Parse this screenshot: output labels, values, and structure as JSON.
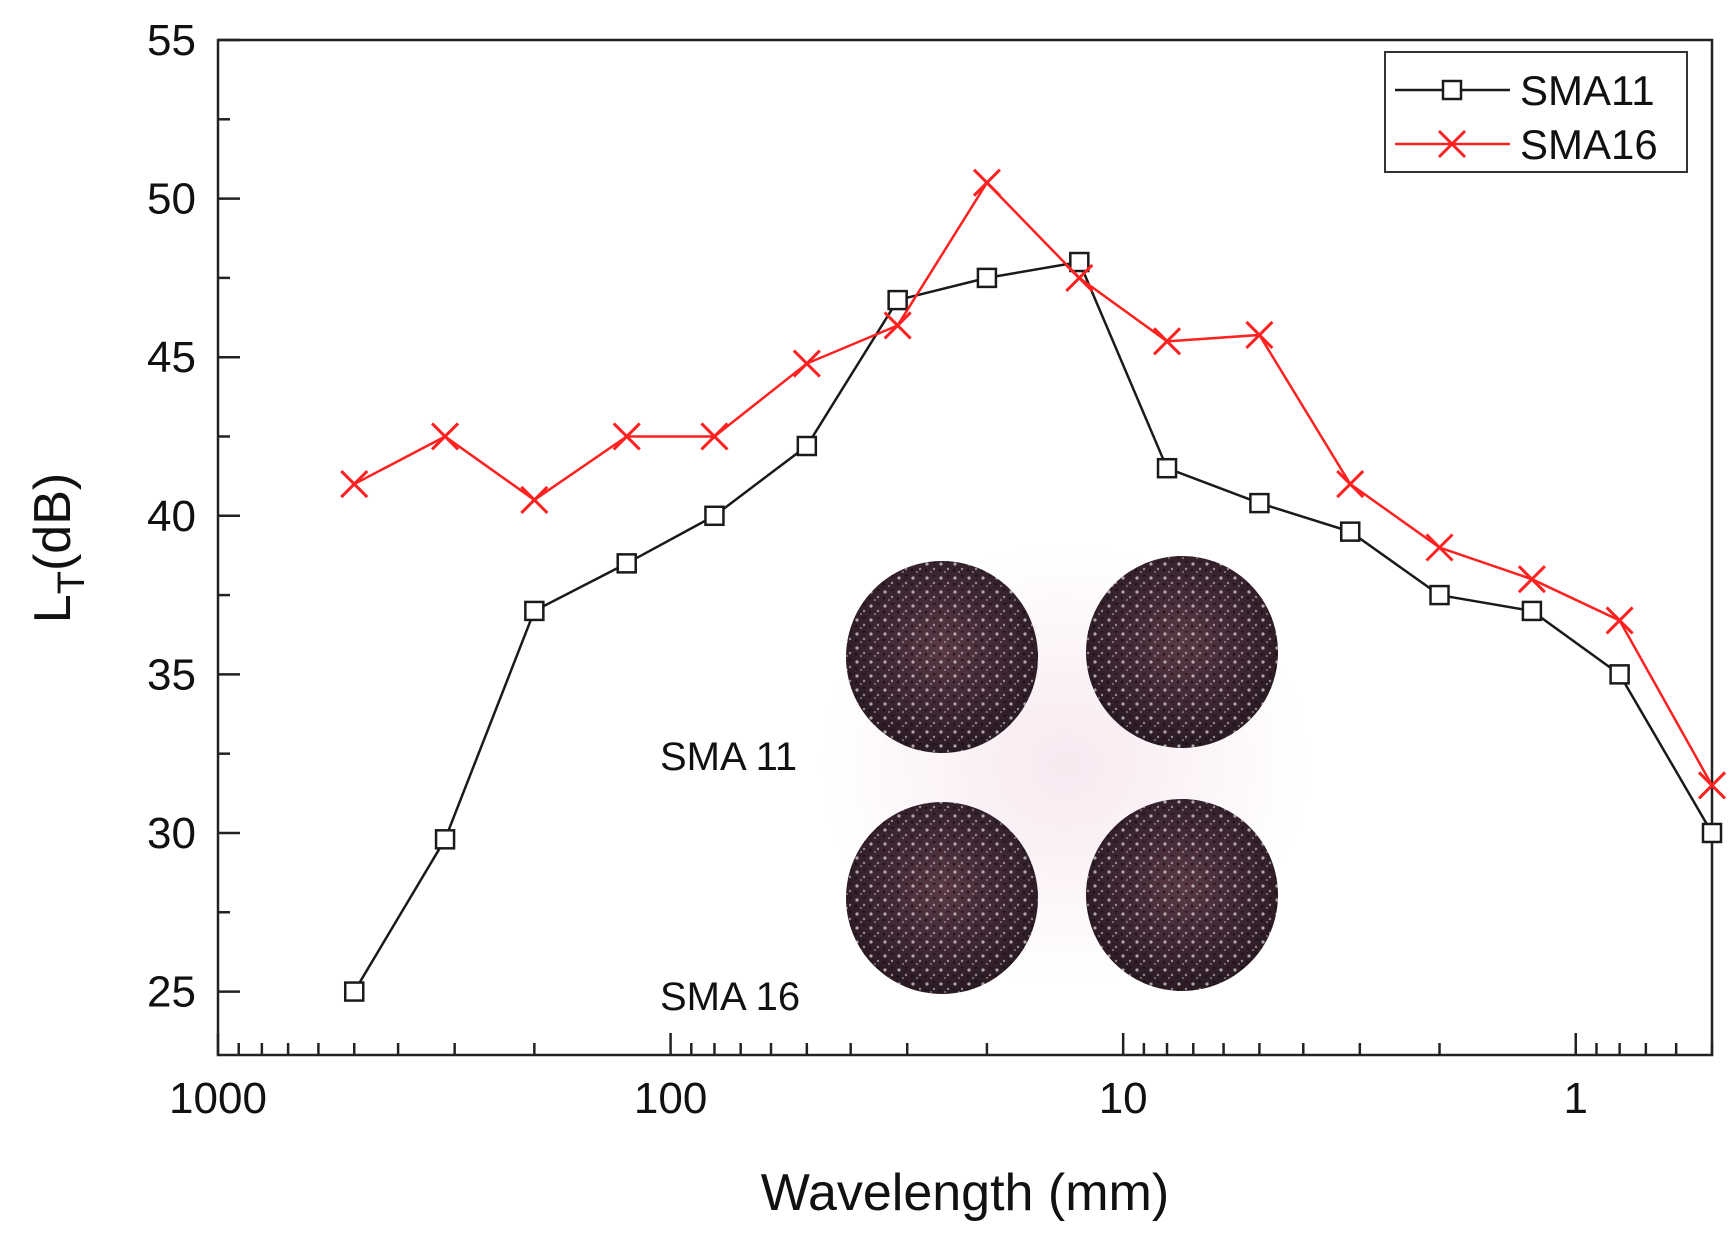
{
  "chart_data": {
    "type": "line",
    "xlabel": "Wavelength (mm)",
    "ylabel_main": "L",
    "ylabel_sub": "T",
    "ylabel_unit": "(dB)",
    "xscale": "log",
    "x_reversed": true,
    "xlim": [
      1000,
      0.5
    ],
    "ylim": [
      23,
      55
    ],
    "x_ticks": [
      1000,
      100,
      10,
      1
    ],
    "x_tick_labels": [
      "1000",
      "100",
      "10",
      "1"
    ],
    "y_ticks": [
      25,
      30,
      35,
      40,
      45,
      50,
      55
    ],
    "y_tick_labels": [
      "25",
      "30",
      "35",
      "40",
      "45",
      "50",
      "55"
    ],
    "x": [
      500,
      315,
      200,
      125,
      80,
      50,
      31.5,
      20,
      12.5,
      8,
      5,
      3.15,
      2,
      1.25,
      0.8,
      0.5
    ],
    "series": [
      {
        "name": "SMA11",
        "color": "#1a1a1a",
        "marker": "square",
        "values": [
          25.0,
          29.8,
          37.0,
          38.5,
          40.0,
          42.2,
          46.8,
          47.5,
          48.0,
          41.5,
          40.4,
          39.5,
          37.5,
          37.0,
          35.0,
          30.0
        ]
      },
      {
        "name": "SMA16",
        "color": "#ff2020",
        "marker": "x",
        "values": [
          41.0,
          42.5,
          40.5,
          42.5,
          42.5,
          44.8,
          46.0,
          50.5,
          47.5,
          45.5,
          45.7,
          41.0,
          39.0,
          38.0,
          36.7,
          31.5
        ]
      }
    ],
    "legend_position": "top-right",
    "grid": false,
    "inset": {
      "description_labels": [
        "SMA 11",
        "SMA 16"
      ]
    }
  }
}
